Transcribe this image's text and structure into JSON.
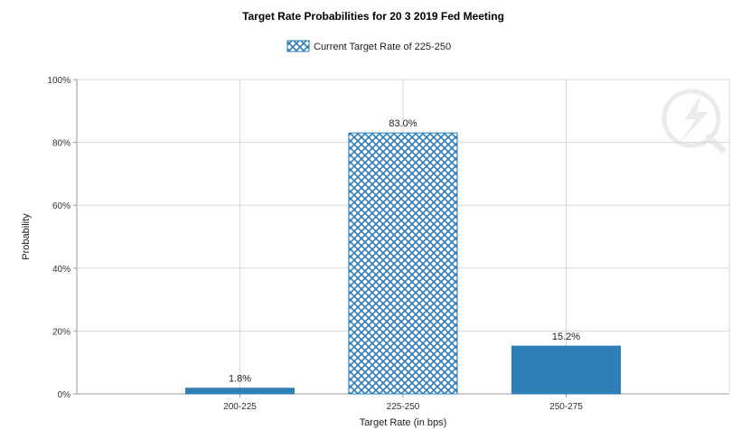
{
  "chart_data": {
    "type": "bar",
    "title": "Target Rate Probabilities for 20 3 2019 Fed Meeting",
    "legend": {
      "label": "Current Target Rate of 225-250",
      "placement": "top-center",
      "pattern": "crosshatch"
    },
    "categories": [
      "200-225",
      "225-250",
      "250-275"
    ],
    "values": [
      1.8,
      83.0,
      15.2
    ],
    "data_labels": [
      "1.8%",
      "83.0%",
      "15.2%"
    ],
    "highlight_category": "225-250",
    "xlabel": "Target Rate (in bps)",
    "ylabel": "Probability",
    "ylim": [
      0,
      100
    ],
    "yticks": [
      0,
      20,
      40,
      60,
      80,
      100
    ],
    "ytick_labels": [
      "0%",
      "20%",
      "40%",
      "60%",
      "80%",
      "100%"
    ],
    "grid": true,
    "colors": {
      "bar": "#2e7eb7",
      "highlight_fill": "#ffffff",
      "highlight_line": "#2e7eb7",
      "grid": "#d8d8d8",
      "axis": "#999999"
    }
  },
  "watermark_icon": "quote-lightning-logo-icon"
}
